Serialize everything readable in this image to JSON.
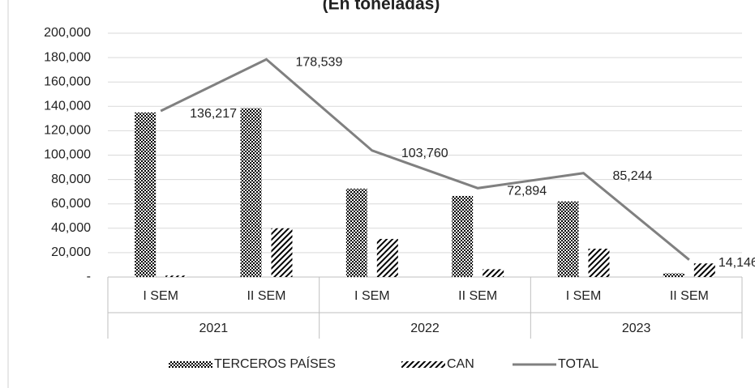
{
  "chart_data": {
    "type": "bar-line",
    "title": "(En toneladas)",
    "categories": [
      "I SEM",
      "II SEM",
      "I SEM",
      "II SEM",
      "I SEM",
      "II SEM"
    ],
    "groups": [
      "2021",
      "2022",
      "2023"
    ],
    "series": [
      {
        "name": "TERCEROS PAÍSES",
        "type": "bar",
        "color": "#000000",
        "pattern": "dots",
        "values": [
          135000,
          138500,
          72500,
          66500,
          62000,
          3000
        ]
      },
      {
        "name": "CAN",
        "type": "bar",
        "color": "#000000",
        "pattern": "hatch",
        "values": [
          1200,
          40000,
          31260,
          6400,
          23244,
          11146
        ]
      },
      {
        "name": "TOTAL",
        "type": "line",
        "color": "#808080",
        "values": [
          136217,
          178539,
          103760,
          72894,
          85244,
          14146
        ],
        "value_labels": [
          "136,217",
          "178,539",
          "103,760",
          "72,894",
          "85,244",
          "14,146"
        ]
      }
    ],
    "ylim": [
      0,
      200000
    ],
    "yticks": [
      {
        "value": 0,
        "label": "-"
      },
      {
        "value": 20000,
        "label": "20,000"
      },
      {
        "value": 40000,
        "label": "40,000"
      },
      {
        "value": 60000,
        "label": "60,000"
      },
      {
        "value": 80000,
        "label": "80,000"
      },
      {
        "value": 100000,
        "label": "100,000"
      },
      {
        "value": 120000,
        "label": "120,000"
      },
      {
        "value": 140000,
        "label": "140,000"
      },
      {
        "value": 160000,
        "label": "160,000"
      },
      {
        "value": 180000,
        "label": "180,000"
      },
      {
        "value": 200000,
        "label": "200,000"
      }
    ],
    "grid": true,
    "legend": "bottom"
  }
}
